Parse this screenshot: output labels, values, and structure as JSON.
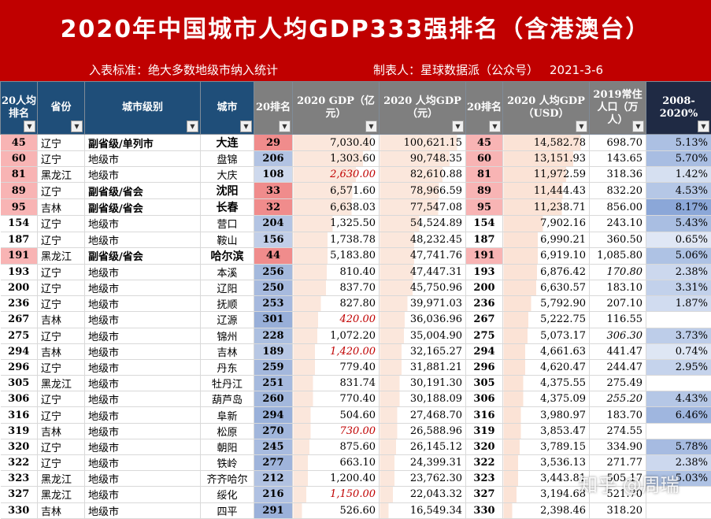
{
  "banner": {
    "title": "2020年中国城市人均GDP333强排名（含港澳台）",
    "criteria": "入表标准：绝大多数地级市纳入统计",
    "maker": "制表人：星球数据派（公众号）",
    "date": "2021-3-6"
  },
  "headers": {
    "rank": "20人均排名",
    "province": "省份",
    "level": "城市级别",
    "city": "城市",
    "rank20": "20排名",
    "gdp": "2020 GDP（亿元）",
    "pcgdp": "2020 人均GDP（元）",
    "rank2": "20排名",
    "usd": "2020 人均GDP（USD）",
    "pop": "2019常住人口（万人）",
    "pct": "2008-2020%"
  },
  "rows": [
    {
      "rank": "45",
      "prov": "辽宁",
      "level": "副省级/单列市",
      "city": "大连",
      "r20": "29",
      "gdp": "7,030.40",
      "pcgdp": "100,621.15",
      "rank2": "45",
      "usd": "14,582.78",
      "pop": "698.70",
      "pct": "5.13%"
    },
    {
      "rank": "60",
      "prov": "辽宁",
      "level": "地级市",
      "city": "盘锦",
      "r20": "206",
      "gdp": "1,303.60",
      "pcgdp": "90,748.35",
      "rank2": "60",
      "usd": "13,151.93",
      "pop": "143.65",
      "pct": "5.70%"
    },
    {
      "rank": "81",
      "prov": "黑龙江",
      "level": "地级市",
      "city": "大庆",
      "r20": "108",
      "gdp": "2,630.00",
      "pcgdp": "82,610.88",
      "rank2": "81",
      "usd": "11,972.59",
      "pop": "318.36",
      "pct": "1.42%"
    },
    {
      "rank": "89",
      "prov": "辽宁",
      "level": "副省级/省会",
      "city": "沈阳",
      "r20": "33",
      "gdp": "6,571.60",
      "pcgdp": "78,966.59",
      "rank2": "89",
      "usd": "11,444.43",
      "pop": "832.20",
      "pct": "4.53%"
    },
    {
      "rank": "95",
      "prov": "吉林",
      "level": "副省级/省会",
      "city": "长春",
      "r20": "32",
      "gdp": "6,638.03",
      "pcgdp": "77,547.08",
      "rank2": "95",
      "usd": "11,238.71",
      "pop": "856.00",
      "pct": "8.17%"
    },
    {
      "rank": "154",
      "prov": "辽宁",
      "level": "地级市",
      "city": "营口",
      "r20": "204",
      "gdp": "1,325.50",
      "pcgdp": "54,524.89",
      "rank2": "154",
      "usd": "7,902.16",
      "pop": "243.10",
      "pct": "5.43%"
    },
    {
      "rank": "187",
      "prov": "辽宁",
      "level": "地级市",
      "city": "鞍山",
      "r20": "156",
      "gdp": "1,738.78",
      "pcgdp": "48,232.45",
      "rank2": "187",
      "usd": "6,990.21",
      "pop": "360.50",
      "pct": "0.65%"
    },
    {
      "rank": "191",
      "prov": "黑龙江",
      "level": "副省级/省会",
      "city": "哈尔滨",
      "r20": "44",
      "gdp": "5,183.80",
      "pcgdp": "47,741.76",
      "rank2": "191",
      "usd": "6,919.10",
      "pop": "1,085.80",
      "pct": "5.06%"
    },
    {
      "rank": "193",
      "prov": "辽宁",
      "level": "地级市",
      "city": "本溪",
      "r20": "256",
      "gdp": "810.40",
      "pcgdp": "47,447.31",
      "rank2": "193",
      "usd": "6,876.42",
      "pop": "170.80",
      "pct": "2.38%"
    },
    {
      "rank": "200",
      "prov": "辽宁",
      "level": "地级市",
      "city": "辽阳",
      "r20": "250",
      "gdp": "837.70",
      "pcgdp": "45,750.96",
      "rank2": "200",
      "usd": "6,630.57",
      "pop": "183.10",
      "pct": "3.31%"
    },
    {
      "rank": "236",
      "prov": "辽宁",
      "level": "地级市",
      "city": "抚顺",
      "r20": "253",
      "gdp": "827.80",
      "pcgdp": "39,971.03",
      "rank2": "236",
      "usd": "5,792.90",
      "pop": "207.10",
      "pct": "1.87%"
    },
    {
      "rank": "267",
      "prov": "吉林",
      "level": "地级市",
      "city": "辽源",
      "r20": "301",
      "gdp": "420.00",
      "pcgdp": "36,036.96",
      "rank2": "267",
      "usd": "5,222.75",
      "pop": "116.55",
      "pct": ""
    },
    {
      "rank": "275",
      "prov": "辽宁",
      "level": "地级市",
      "city": "锦州",
      "r20": "228",
      "gdp": "1,072.20",
      "pcgdp": "35,004.90",
      "rank2": "275",
      "usd": "5,073.17",
      "pop": "306.30",
      "pct": "3.73%"
    },
    {
      "rank": "294",
      "prov": "吉林",
      "level": "地级市",
      "city": "吉林",
      "r20": "189",
      "gdp": "1,420.00",
      "pcgdp": "32,165.27",
      "rank2": "294",
      "usd": "4,661.63",
      "pop": "441.47",
      "pct": "0.74%"
    },
    {
      "rank": "296",
      "prov": "辽宁",
      "level": "地级市",
      "city": "丹东",
      "r20": "259",
      "gdp": "779.40",
      "pcgdp": "31,881.21",
      "rank2": "296",
      "usd": "4,620.47",
      "pop": "244.47",
      "pct": "2.95%"
    },
    {
      "rank": "305",
      "prov": "黑龙江",
      "level": "地级市",
      "city": "牡丹江",
      "r20": "251",
      "gdp": "831.74",
      "pcgdp": "30,191.30",
      "rank2": "305",
      "usd": "4,375.55",
      "pop": "275.49",
      "pct": ""
    },
    {
      "rank": "306",
      "prov": "辽宁",
      "level": "地级市",
      "city": "葫芦岛",
      "r20": "260",
      "gdp": "770.40",
      "pcgdp": "30,188.09",
      "rank2": "306",
      "usd": "4,375.09",
      "pop": "255.20",
      "pct": "4.43%"
    },
    {
      "rank": "316",
      "prov": "辽宁",
      "level": "地级市",
      "city": "阜新",
      "r20": "294",
      "gdp": "504.60",
      "pcgdp": "27,468.70",
      "rank2": "316",
      "usd": "3,980.97",
      "pop": "183.70",
      "pct": "6.46%"
    },
    {
      "rank": "319",
      "prov": "吉林",
      "level": "地级市",
      "city": "松原",
      "r20": "270",
      "gdp": "730.00",
      "pcgdp": "26,588.96",
      "rank2": "319",
      "usd": "3,853.47",
      "pop": "274.55",
      "pct": ""
    },
    {
      "rank": "320",
      "prov": "辽宁",
      "level": "地级市",
      "city": "朝阳",
      "r20": "245",
      "gdp": "875.60",
      "pcgdp": "26,145.12",
      "rank2": "320",
      "usd": "3,789.15",
      "pop": "334.90",
      "pct": "5.78%"
    },
    {
      "rank": "322",
      "prov": "辽宁",
      "level": "地级市",
      "city": "铁岭",
      "r20": "277",
      "gdp": "663.10",
      "pcgdp": "24,399.31",
      "rank2": "322",
      "usd": "3,536.13",
      "pop": "271.77",
      "pct": "2.38%"
    },
    {
      "rank": "323",
      "prov": "黑龙江",
      "level": "地级市",
      "city": "齐齐哈尔",
      "r20": "212",
      "gdp": "1,200.40",
      "pcgdp": "23,762.30",
      "rank2": "323",
      "usd": "3,443.81",
      "pop": "505.17",
      "pct": "5.03%"
    },
    {
      "rank": "327",
      "prov": "黑龙江",
      "level": "地级市",
      "city": "绥化",
      "r20": "216",
      "gdp": "1,150.00",
      "pcgdp": "22,043.32",
      "rank2": "327",
      "usd": "3,194.68",
      "pop": "521.70",
      "pct": ""
    },
    {
      "rank": "330",
      "prov": "吉林",
      "level": "地级市",
      "city": "四平",
      "r20": "291",
      "gdp": "526.60",
      "pcgdp": "16,549.34",
      "rank2": "330",
      "usd": "2,398.46",
      "pop": "318.20",
      "pct": ""
    }
  ],
  "red_gdp": [
    "大庆",
    "辽源",
    "吉林",
    "松原",
    "绥化"
  ],
  "italic_pop": [
    "本溪",
    "锦州",
    "葫芦岛"
  ],
  "bold_levels": [
    "副省级/单列市",
    "副省级/省会"
  ],
  "watermark": "知乎 @周瑞"
}
